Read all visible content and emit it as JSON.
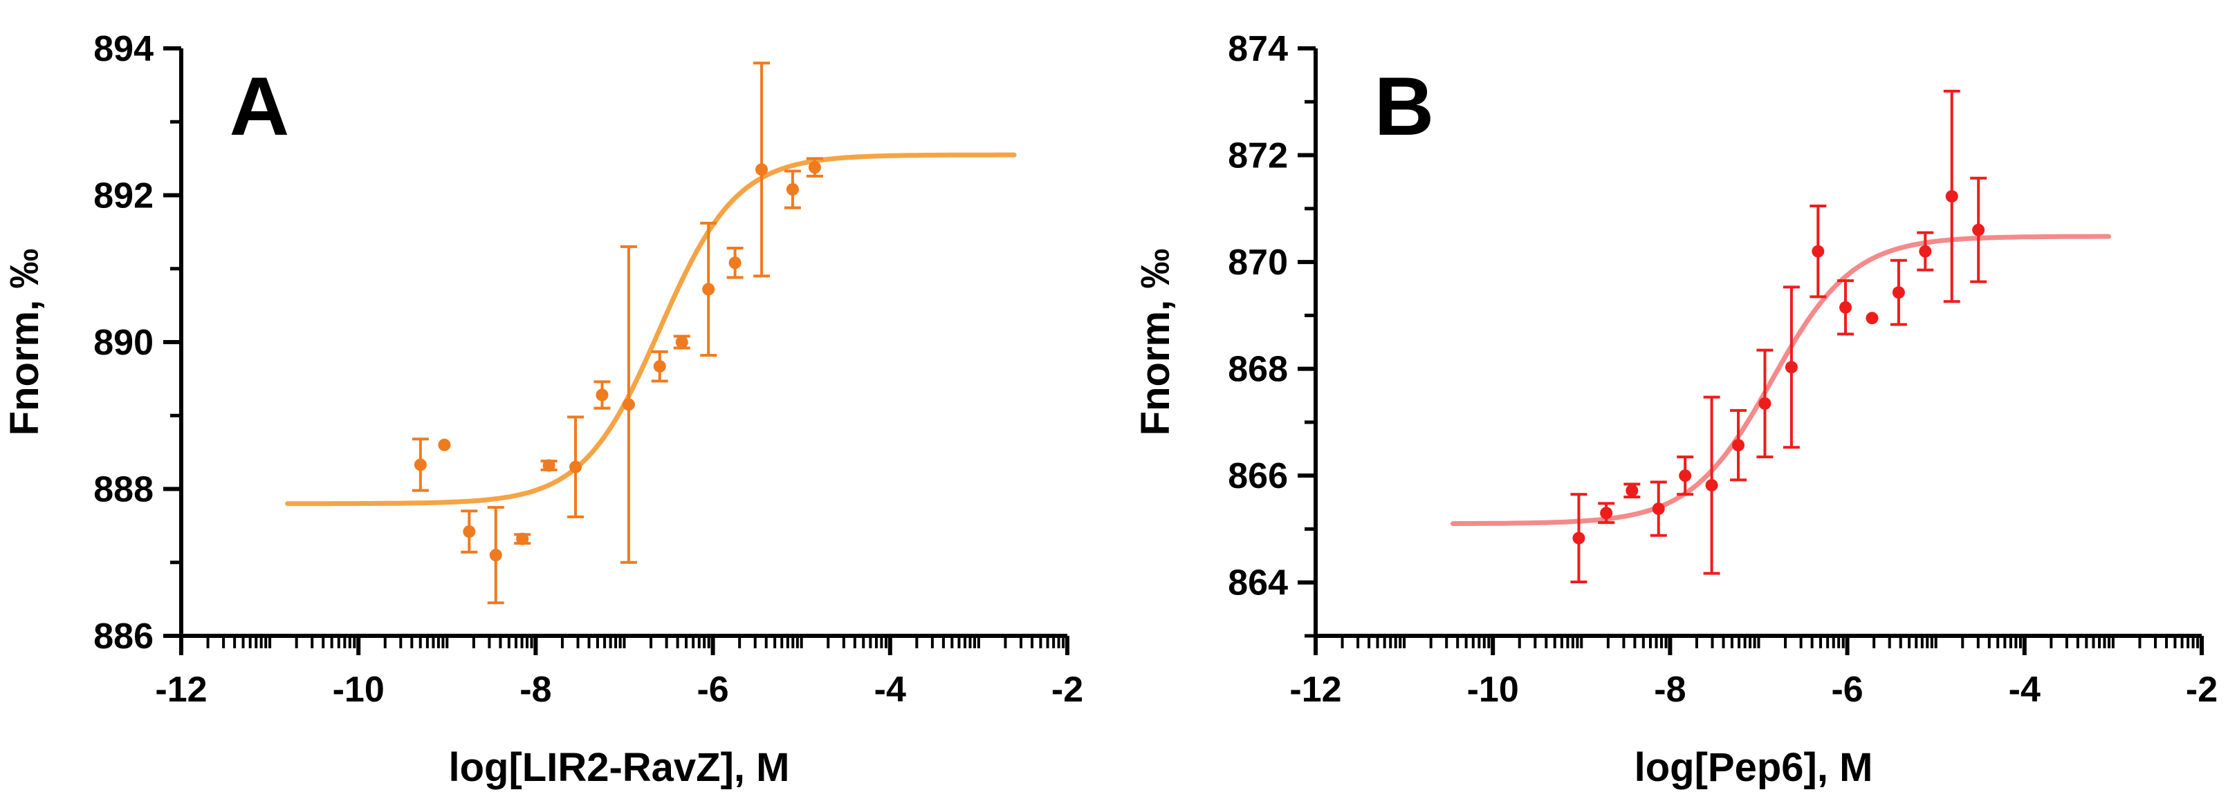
{
  "chart_data": [
    {
      "type": "scatter",
      "panel_letter": "A",
      "xlabel": "log[LIR2-RavZ], M",
      "ylabel": "Fnorm, ‰",
      "xlim": [
        -12,
        -2
      ],
      "ylim": [
        886,
        894
      ],
      "x_ticks": [
        -12,
        -10,
        -8,
        -6,
        -4,
        -2
      ],
      "x_tick_labels": [
        "-12",
        "-10",
        "-8",
        "-6",
        "-4",
        "-2"
      ],
      "y_ticks": [
        886,
        888,
        890,
        892,
        894
      ],
      "y_tick_labels": [
        "886",
        "888",
        "890",
        "892",
        "894"
      ],
      "x_minor_ticks": "log-spaced (9 per decade)",
      "grid": false,
      "legend": "none",
      "color": "#f07a1e",
      "fit_color": "#f5a445",
      "series": [
        {
          "x": [
            -9.3,
            -9.03,
            -8.75,
            -8.45,
            -8.15,
            -7.85,
            -7.55,
            -7.25,
            -6.95,
            -6.6,
            -6.35,
            -6.05,
            -5.75,
            -5.45,
            -5.1,
            -4.85
          ],
          "y": [
            888.33,
            888.6,
            887.42,
            887.1,
            887.32,
            888.32,
            888.3,
            889.28,
            889.15,
            889.67,
            890.0,
            890.72,
            891.08,
            892.35,
            892.08,
            892.38
          ],
          "err": [
            0.35,
            0,
            0.28,
            0.65,
            0.06,
            0.06,
            0.68,
            0.18,
            2.15,
            0.2,
            0.08,
            0.9,
            0.2,
            1.45,
            0.25,
            0.12
          ]
        }
      ],
      "fit": {
        "x_range": [
          -10.8,
          -2.6
        ],
        "bottom": 887.8,
        "top": 892.55,
        "logEC50": -6.6,
        "hill": 1.0
      }
    },
    {
      "type": "scatter",
      "panel_letter": "B",
      "xlabel": "log[Pep6], M",
      "ylabel": "Fnorm, ‰",
      "xlim": [
        -12,
        -2
      ],
      "ylim": [
        863,
        874
      ],
      "x_ticks": [
        -12,
        -10,
        -8,
        -6,
        -4,
        -2
      ],
      "x_tick_labels": [
        "-12",
        "-10",
        "-8",
        "-6",
        "-4",
        "-2"
      ],
      "y_ticks": [
        864,
        866,
        868,
        870,
        872,
        874
      ],
      "y_tick_labels": [
        "864",
        "866",
        "868",
        "870",
        "872",
        "874"
      ],
      "x_minor_ticks": "log-spaced (9 per decade)",
      "grid": false,
      "legend": "none",
      "color": "#ef1c1c",
      "fit_color": "#f48a8a",
      "series": [
        {
          "x": [
            -9.03,
            -8.72,
            -8.43,
            -8.13,
            -7.83,
            -7.53,
            -7.23,
            -6.93,
            -6.63,
            -6.33,
            -6.02,
            -5.72,
            -5.42,
            -5.12,
            -4.82,
            -4.52
          ],
          "y": [
            864.83,
            865.3,
            865.72,
            865.38,
            866.0,
            865.82,
            866.57,
            867.35,
            868.03,
            870.2,
            869.15,
            868.95,
            869.43,
            870.2,
            871.23,
            870.6
          ],
          "err": [
            0.82,
            0.18,
            0.12,
            0.5,
            0.35,
            1.65,
            0.65,
            1.0,
            1.5,
            0.85,
            0.5,
            0,
            0.6,
            0.35,
            1.97,
            0.97
          ]
        }
      ],
      "fit": {
        "x_range": [
          -10.45,
          -3.05
        ],
        "bottom": 865.1,
        "top": 870.48,
        "logEC50": -6.85,
        "hill": 0.95
      }
    }
  ]
}
